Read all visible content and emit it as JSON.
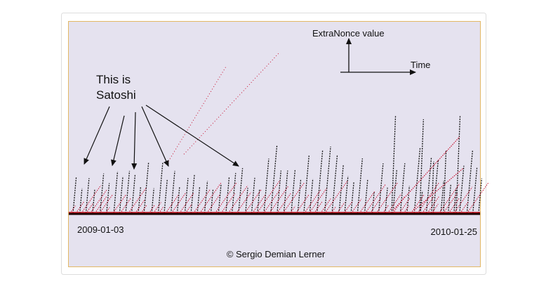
{
  "axes_legend": {
    "vertical": "ExtraNonce value",
    "horizontal": "Time"
  },
  "annotation": {
    "line1": "This is",
    "line2": "Satoshi"
  },
  "dates": {
    "start": "2009-01-03",
    "end": "2010-01-25"
  },
  "credit": "© Sergio Demian Lerner"
}
